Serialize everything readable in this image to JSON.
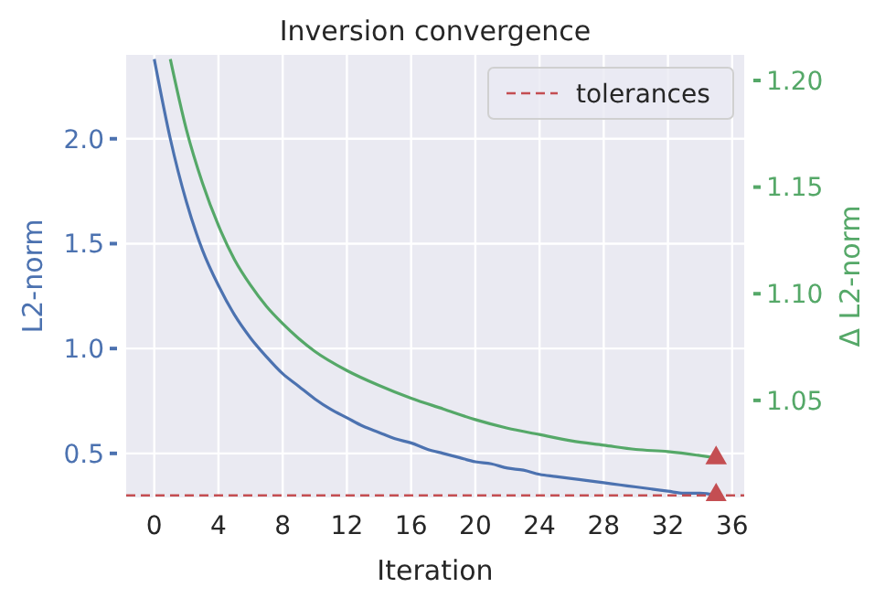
{
  "chart_data": {
    "type": "line",
    "title": "Inversion convergence",
    "xlabel": "Iteration",
    "ylabel": "L2-norm",
    "y2label": "Δ L2-norm",
    "xlim": [
      -1.75,
      36.75
    ],
    "xticks": [
      0,
      4,
      8,
      12,
      16,
      20,
      24,
      28,
      32,
      36
    ],
    "ylim": [
      0.29,
      2.4
    ],
    "yticks": [
      {
        "value": 0.5,
        "label": "0.5"
      },
      {
        "value": 1,
        "label": "1.0"
      },
      {
        "value": 1.5,
        "label": "1.5"
      },
      {
        "value": 2,
        "label": "2.0"
      }
    ],
    "y2lim": [
      1.0045,
      1.212
    ],
    "y2ticks": [
      1.05,
      {
        "value": 1.1,
        "label": "1.10"
      },
      1.15,
      {
        "value": 1.2,
        "label": "1.20"
      }
    ],
    "grid": true,
    "legend": "top right",
    "marker": "none",
    "line_style": "solid",
    "series": [
      {
        "color": "#4c72b0",
        "x": [
          0,
          1,
          2,
          3,
          4,
          5,
          6,
          7,
          8,
          9,
          10,
          11,
          12,
          13,
          14,
          15,
          16,
          17,
          18,
          19,
          20,
          21,
          22,
          23,
          24,
          25,
          26,
          27,
          28,
          29,
          30,
          31,
          32,
          33,
          34,
          35
        ],
        "values": [
          2.38,
          2.0,
          1.7,
          1.47,
          1.3,
          1.16,
          1.05,
          0.96,
          0.88,
          0.82,
          0.76,
          0.71,
          0.67,
          0.63,
          0.6,
          0.57,
          0.55,
          0.52,
          0.5,
          0.48,
          0.46,
          0.45,
          0.43,
          0.42,
          0.4,
          0.39,
          0.38,
          0.37,
          0.36,
          0.35,
          0.34,
          0.33,
          0.32,
          0.31,
          0.31,
          0.3
        ]
      },
      {
        "axis": "y2",
        "color": "#55a868",
        "x": [
          1,
          2,
          3,
          4,
          5,
          6,
          7,
          8,
          9,
          10,
          12,
          14,
          16,
          18,
          20,
          22,
          24,
          26,
          28,
          30,
          32,
          35
        ],
        "values": [
          1.21,
          1.177,
          1.152,
          1.132,
          1.116,
          1.104,
          1.094,
          1.086,
          1.079,
          1.073,
          1.064,
          1.057,
          1.051,
          1.046,
          1.041,
          1.037,
          1.034,
          1.031,
          1.029,
          1.027,
          1.026,
          1.023
        ]
      },
      {
        "type": "scatter",
        "marker": "triangle",
        "color": "#c44e52",
        "x": [
          35
        ],
        "values": [
          0.3
        ]
      },
      {
        "type": "scatter",
        "marker": "triangle",
        "axis": "y2",
        "color": "#c44e52",
        "x": [
          35
        ],
        "values": [
          1.023
        ]
      }
    ],
    "ref_lines": [
      {
        "axis": "y",
        "value": 0.3,
        "label": "tolerances",
        "color": "#c44e52",
        "line_style": "dashed"
      }
    ]
  }
}
